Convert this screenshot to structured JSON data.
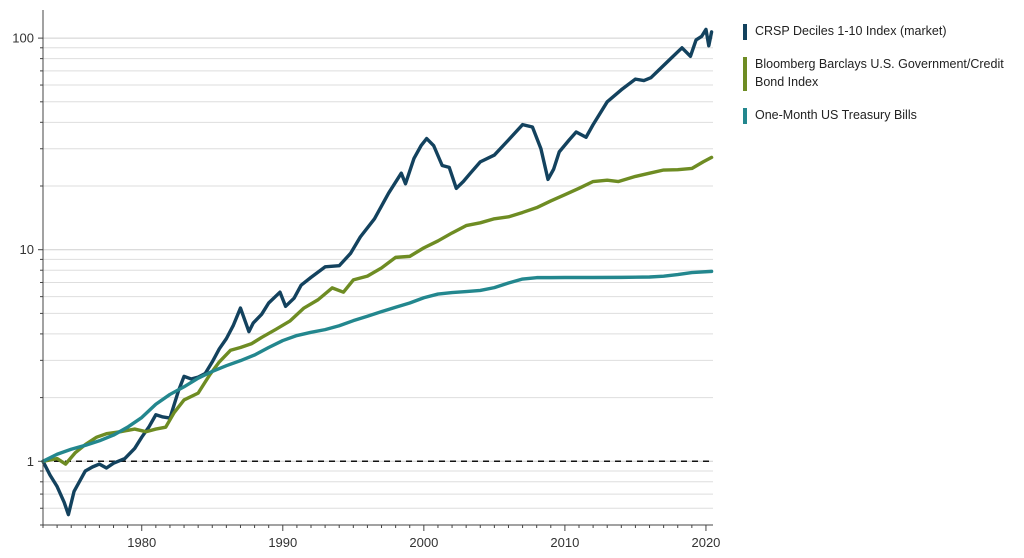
{
  "chart_data": {
    "type": "line",
    "title": "",
    "xlabel": "",
    "ylabel": "",
    "y_scale": "log",
    "xlim": [
      1973,
      2020.5
    ],
    "ylim": [
      0.5,
      130
    ],
    "x_ticks": [
      1980,
      1990,
      2000,
      2010,
      2020
    ],
    "x_tick_labels": [
      "1980",
      "1990",
      "2000",
      "2010",
      "2020"
    ],
    "y_ticks": [
      1,
      10,
      100
    ],
    "y_tick_labels": [
      "1",
      "10",
      "100"
    ],
    "reference_line": {
      "y": 1,
      "style": "dashed",
      "color": "#111111"
    },
    "grid": true,
    "legend_position": "right",
    "series": [
      {
        "name": "CRSP Deciles 1-10 Index (market)",
        "color": "#13425e",
        "x": [
          1973.0,
          1973.5,
          1974.0,
          1974.5,
          1974.8,
          1975.2,
          1976.0,
          1976.5,
          1977.0,
          1977.5,
          1978.0,
          1978.8,
          1979.5,
          1980.0,
          1980.5,
          1981.0,
          1981.5,
          1982.0,
          1982.6,
          1983.0,
          1983.5,
          1984.0,
          1984.5,
          1985.0,
          1985.5,
          1986.0,
          1986.5,
          1987.0,
          1987.6,
          1987.9,
          1988.5,
          1989.0,
          1989.8,
          1990.2,
          1990.8,
          1991.3,
          1992.0,
          1993.0,
          1994.0,
          1994.8,
          1995.5,
          1996.5,
          1997.5,
          1998.4,
          1998.7,
          1999.3,
          1999.8,
          2000.2,
          2000.7,
          2001.3,
          2001.8,
          2002.3,
          2002.8,
          2003.3,
          2004.0,
          2005.0,
          2006.0,
          2007.0,
          2007.7,
          2008.3,
          2008.8,
          2009.2,
          2009.6,
          2010.3,
          2010.8,
          2011.5,
          2012.0,
          2013.0,
          2014.0,
          2015.0,
          2015.6,
          2016.1,
          2016.6,
          2017.5,
          2018.3,
          2018.9,
          2019.3,
          2019.7,
          2020.0,
          2020.2,
          2020.4
        ],
        "values": [
          1.0,
          0.86,
          0.76,
          0.64,
          0.56,
          0.72,
          0.9,
          0.94,
          0.97,
          0.93,
          0.98,
          1.03,
          1.15,
          1.3,
          1.45,
          1.66,
          1.62,
          1.6,
          2.15,
          2.52,
          2.45,
          2.5,
          2.6,
          2.95,
          3.4,
          3.8,
          4.4,
          5.3,
          4.1,
          4.5,
          4.95,
          5.6,
          6.3,
          5.4,
          5.9,
          6.8,
          7.4,
          8.3,
          8.4,
          9.6,
          11.5,
          14.0,
          18.5,
          23.0,
          20.5,
          27.0,
          31.0,
          33.5,
          31.0,
          25.0,
          24.5,
          19.5,
          21.0,
          23.0,
          26.0,
          28.0,
          33.0,
          39.0,
          38.0,
          30.0,
          21.5,
          24.0,
          29.0,
          33.0,
          36.0,
          34.0,
          39.0,
          50.0,
          57.0,
          64.0,
          63.0,
          65.0,
          70.0,
          80.0,
          90.0,
          82.0,
          98.0,
          102.0,
          110.0,
          92.0,
          107.0
        ]
      },
      {
        "name": "Bloomberg Barclays U.S. Government/Credit Bond Index",
        "color": "#6e8c23",
        "x": [
          1973.0,
          1974.0,
          1974.6,
          1975.3,
          1976.0,
          1976.8,
          1977.5,
          1978.5,
          1979.5,
          1980.3,
          1981.0,
          1981.7,
          1982.3,
          1983.0,
          1984.0,
          1984.8,
          1985.5,
          1986.3,
          1987.0,
          1987.8,
          1988.5,
          1989.5,
          1990.5,
          1991.5,
          1992.5,
          1993.5,
          1994.3,
          1995.0,
          1996.0,
          1997.0,
          1998.0,
          1999.0,
          2000.0,
          2001.0,
          2002.0,
          2003.0,
          2004.0,
          2005.0,
          2006.0,
          2007.0,
          2008.0,
          2009.0,
          2010.0,
          2011.0,
          2012.0,
          2013.0,
          2013.8,
          2015.0,
          2016.0,
          2017.0,
          2018.0,
          2019.0,
          2019.8,
          2020.4
        ],
        "values": [
          1.0,
          1.03,
          0.97,
          1.1,
          1.2,
          1.3,
          1.35,
          1.38,
          1.42,
          1.38,
          1.42,
          1.45,
          1.7,
          1.95,
          2.1,
          2.55,
          2.95,
          3.35,
          3.45,
          3.6,
          3.85,
          4.2,
          4.6,
          5.3,
          5.8,
          6.6,
          6.3,
          7.2,
          7.5,
          8.2,
          9.2,
          9.3,
          10.2,
          11.0,
          12.0,
          13.0,
          13.4,
          14.0,
          14.3,
          15.0,
          15.8,
          17.0,
          18.2,
          19.5,
          21.0,
          21.3,
          21.0,
          22.2,
          23.0,
          23.8,
          23.9,
          24.2,
          26.0,
          27.3
        ]
      },
      {
        "name": "One-Month US Treasury Bills",
        "color": "#23878e",
        "x": [
          1973.0,
          1974.0,
          1975.0,
          1976.0,
          1977.0,
          1978.0,
          1979.0,
          1980.0,
          1981.0,
          1982.0,
          1983.0,
          1984.0,
          1985.0,
          1986.0,
          1987.0,
          1988.0,
          1989.0,
          1990.0,
          1991.0,
          1992.0,
          1993.0,
          1994.0,
          1995.0,
          1996.0,
          1997.0,
          1998.0,
          1999.0,
          2000.0,
          2001.0,
          2002.0,
          2003.0,
          2004.0,
          2005.0,
          2006.0,
          2007.0,
          2008.0,
          2009.0,
          2010.0,
          2012.0,
          2014.0,
          2016.0,
          2017.0,
          2018.0,
          2019.0,
          2020.4
        ],
        "values": [
          1.0,
          1.08,
          1.14,
          1.19,
          1.25,
          1.33,
          1.45,
          1.61,
          1.86,
          2.07,
          2.25,
          2.47,
          2.66,
          2.83,
          2.99,
          3.18,
          3.45,
          3.72,
          3.93,
          4.07,
          4.19,
          4.37,
          4.62,
          4.85,
          5.1,
          5.35,
          5.6,
          5.93,
          6.17,
          6.27,
          6.34,
          6.42,
          6.62,
          6.96,
          7.27,
          7.38,
          7.38,
          7.39,
          7.39,
          7.4,
          7.43,
          7.5,
          7.63,
          7.8,
          7.9
        ]
      }
    ]
  }
}
